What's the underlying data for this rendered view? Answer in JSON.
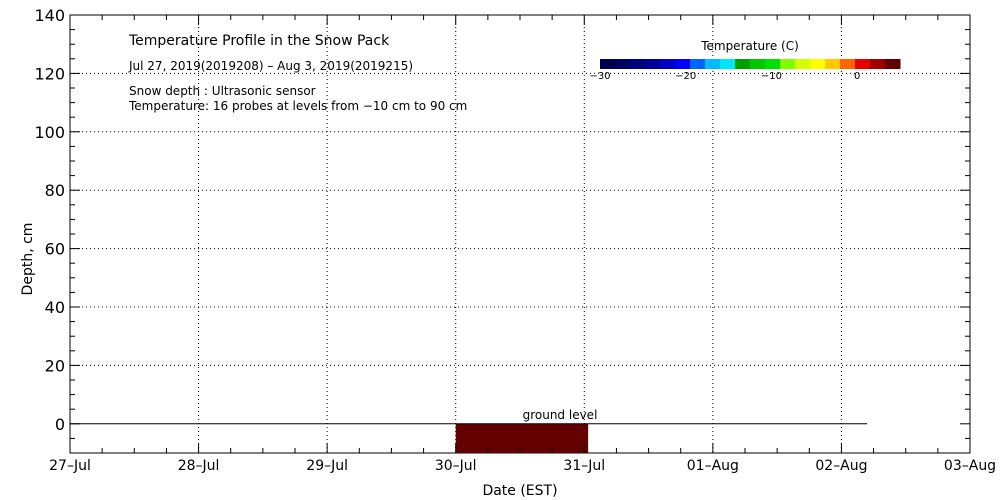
{
  "chart_data": {
    "type": "heatmap",
    "title": "Temperature Profile in the Snow Pack",
    "subtitle": "Jul 27, 2019(2019208) – Aug  3, 2019(2019215)",
    "notes": [
      "Snow depth : Ultrasonic sensor",
      "Temperature: 16 probes at levels from −10 cm to 90 cm"
    ],
    "xlabel": "Date (EST)",
    "ylabel": "Depth, cm",
    "x_ticks": [
      "27–Jul",
      "28–Jul",
      "29–Jul",
      "30–Jul",
      "31–Jul",
      "01–Aug",
      "02–Aug",
      "03–Aug"
    ],
    "xlim_days": [
      0,
      7
    ],
    "ylim": [
      -10,
      140
    ],
    "y_ticks": [
      0,
      20,
      40,
      60,
      80,
      100,
      120,
      140
    ],
    "grid": true,
    "ground_level": {
      "label": "ground level",
      "depth": 0,
      "x_start_day": 0,
      "x_end_day": 6.2
    },
    "temperature_cells": [
      {
        "x_start_day": 3.0,
        "x_end_day": 4.03,
        "y_from": -10,
        "y_to": 0,
        "color": "#650000"
      }
    ],
    "colorbar": {
      "title": "Temperature (C)",
      "range": [
        -30,
        5
      ],
      "tick_values": [
        -30,
        -20,
        -10,
        0
      ],
      "tick_labels": [
        "−30",
        "−20",
        "−10",
        "0"
      ],
      "colors": [
        "#000050",
        "#000064",
        "#00007d",
        "#000096",
        "#0000c8",
        "#0000ff",
        "#0064ff",
        "#00bcff",
        "#00e4ff",
        "#00a000",
        "#00c800",
        "#00e000",
        "#80ff00",
        "#d2ff00",
        "#ffff00",
        "#ffc800",
        "#ff6400",
        "#e60000",
        "#a00000",
        "#640000"
      ]
    }
  }
}
